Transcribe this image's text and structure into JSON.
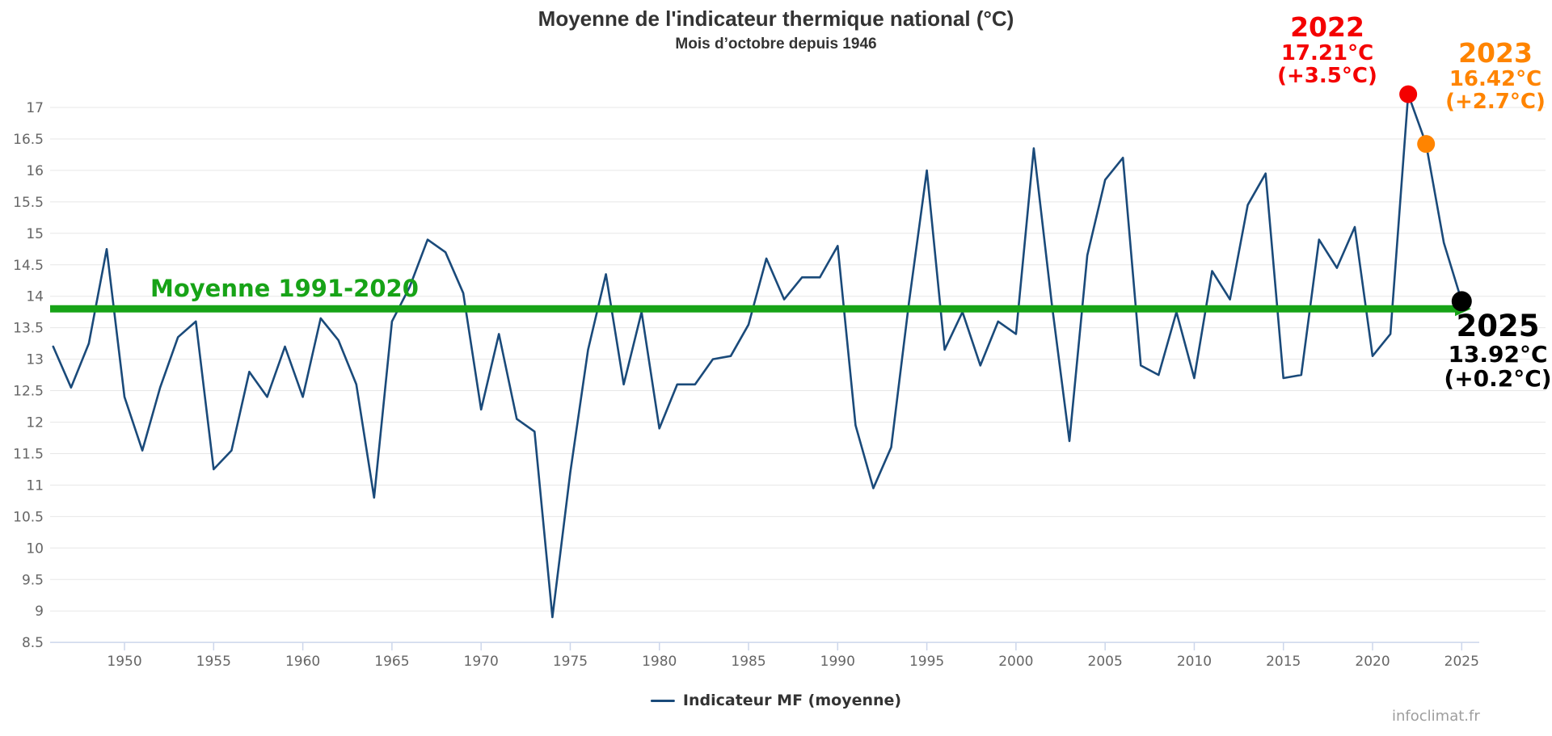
{
  "chart": {
    "title": "Moyenne de l'indicateur thermique national (°C)",
    "subtitle": "Mois d’octobre depuis 1946"
  },
  "mean_line_label": "Moyenne 1991-2020",
  "legend": {
    "series_label": "Indicateur MF (moyenne)"
  },
  "credit": "infoclimat.fr",
  "annotations": {
    "y2022": {
      "year": "2022",
      "value": "17.21°C",
      "anomaly": "(+3.5°C)"
    },
    "y2023": {
      "year": "2023",
      "value": "16.42°C",
      "anomaly": "(+2.7°C)"
    },
    "y2025": {
      "year": "2025",
      "value": "13.92°C",
      "anomaly": "(+0.2°C)"
    }
  },
  "colors": {
    "series": "#1a4a7a",
    "mean_line": "#17a317",
    "dot_2022": "#f40000",
    "dot_2023": "#ff8400",
    "dot_2025": "#000000",
    "axis_line": "#ccd6eb",
    "grid_line": "#e7e7e7",
    "tick_label": "#666666"
  },
  "chart_data": {
    "type": "line",
    "title": "Moyenne de l'indicateur thermique national (°C)",
    "subtitle": "Mois d’octobre depuis 1946",
    "x": [
      1946,
      1947,
      1948,
      1949,
      1950,
      1951,
      1952,
      1953,
      1954,
      1955,
      1956,
      1957,
      1958,
      1959,
      1960,
      1961,
      1962,
      1963,
      1964,
      1965,
      1966,
      1967,
      1968,
      1969,
      1970,
      1971,
      1972,
      1973,
      1974,
      1975,
      1976,
      1977,
      1978,
      1979,
      1980,
      1981,
      1982,
      1983,
      1984,
      1985,
      1986,
      1987,
      1988,
      1989,
      1990,
      1991,
      1992,
      1993,
      1994,
      1995,
      1996,
      1997,
      1998,
      1999,
      2000,
      2001,
      2002,
      2003,
      2004,
      2005,
      2006,
      2007,
      2008,
      2009,
      2010,
      2011,
      2012,
      2013,
      2014,
      2015,
      2016,
      2017,
      2018,
      2019,
      2020,
      2021,
      2022,
      2023,
      2024,
      2025
    ],
    "series": [
      {
        "name": "Indicateur MF (moyenne)",
        "color": "#1a4a7a",
        "values": [
          13.2,
          12.55,
          13.25,
          14.75,
          12.4,
          11.55,
          12.55,
          13.35,
          13.6,
          11.25,
          11.55,
          12.8,
          12.4,
          13.2,
          12.4,
          13.65,
          13.3,
          12.6,
          10.8,
          13.6,
          14.15,
          14.9,
          14.7,
          14.05,
          12.2,
          13.4,
          12.05,
          11.85,
          8.9,
          11.2,
          13.15,
          14.35,
          12.6,
          13.75,
          11.9,
          12.6,
          12.6,
          13.0,
          13.05,
          13.55,
          14.6,
          13.95,
          14.3,
          14.3,
          14.8,
          11.95,
          10.95,
          11.6,
          13.9,
          16.0,
          13.15,
          13.75,
          12.9,
          13.6,
          13.4,
          16.35,
          13.9,
          11.7,
          14.65,
          15.85,
          16.2,
          12.9,
          12.75,
          13.75,
          12.7,
          14.4,
          13.95,
          15.45,
          15.95,
          12.7,
          12.75,
          14.9,
          14.45,
          15.1,
          13.05,
          13.4,
          17.21,
          16.42,
          14.85,
          13.92
        ]
      }
    ],
    "reference_line": {
      "label": "Moyenne 1991-2020",
      "period": "1991-2020",
      "value": 13.8,
      "color": "#17a317"
    },
    "highlight_points": [
      {
        "year": 2022,
        "value": 17.21,
        "anomaly": "+3.5°C",
        "color": "#f40000"
      },
      {
        "year": 2023,
        "value": 16.42,
        "anomaly": "+2.7°C",
        "color": "#ff8400"
      },
      {
        "year": 2025,
        "value": 13.92,
        "anomaly": "+0.2°C",
        "color": "#000000"
      }
    ],
    "x_ticks": [
      1950,
      1955,
      1960,
      1965,
      1970,
      1975,
      1980,
      1985,
      1990,
      1995,
      2000,
      2005,
      2010,
      2015,
      2020,
      2025
    ],
    "y_ticks": [
      8.5,
      9,
      9.5,
      10,
      10.5,
      11,
      11.5,
      12,
      12.5,
      13,
      13.5,
      14,
      14.5,
      15,
      15.5,
      16,
      16.5,
      17
    ],
    "xlim": [
      1946,
      2026
    ],
    "ylim": [
      8.5,
      17.6
    ],
    "xlabel": "",
    "ylabel": "",
    "grid": true,
    "legend_position": "bottom"
  }
}
